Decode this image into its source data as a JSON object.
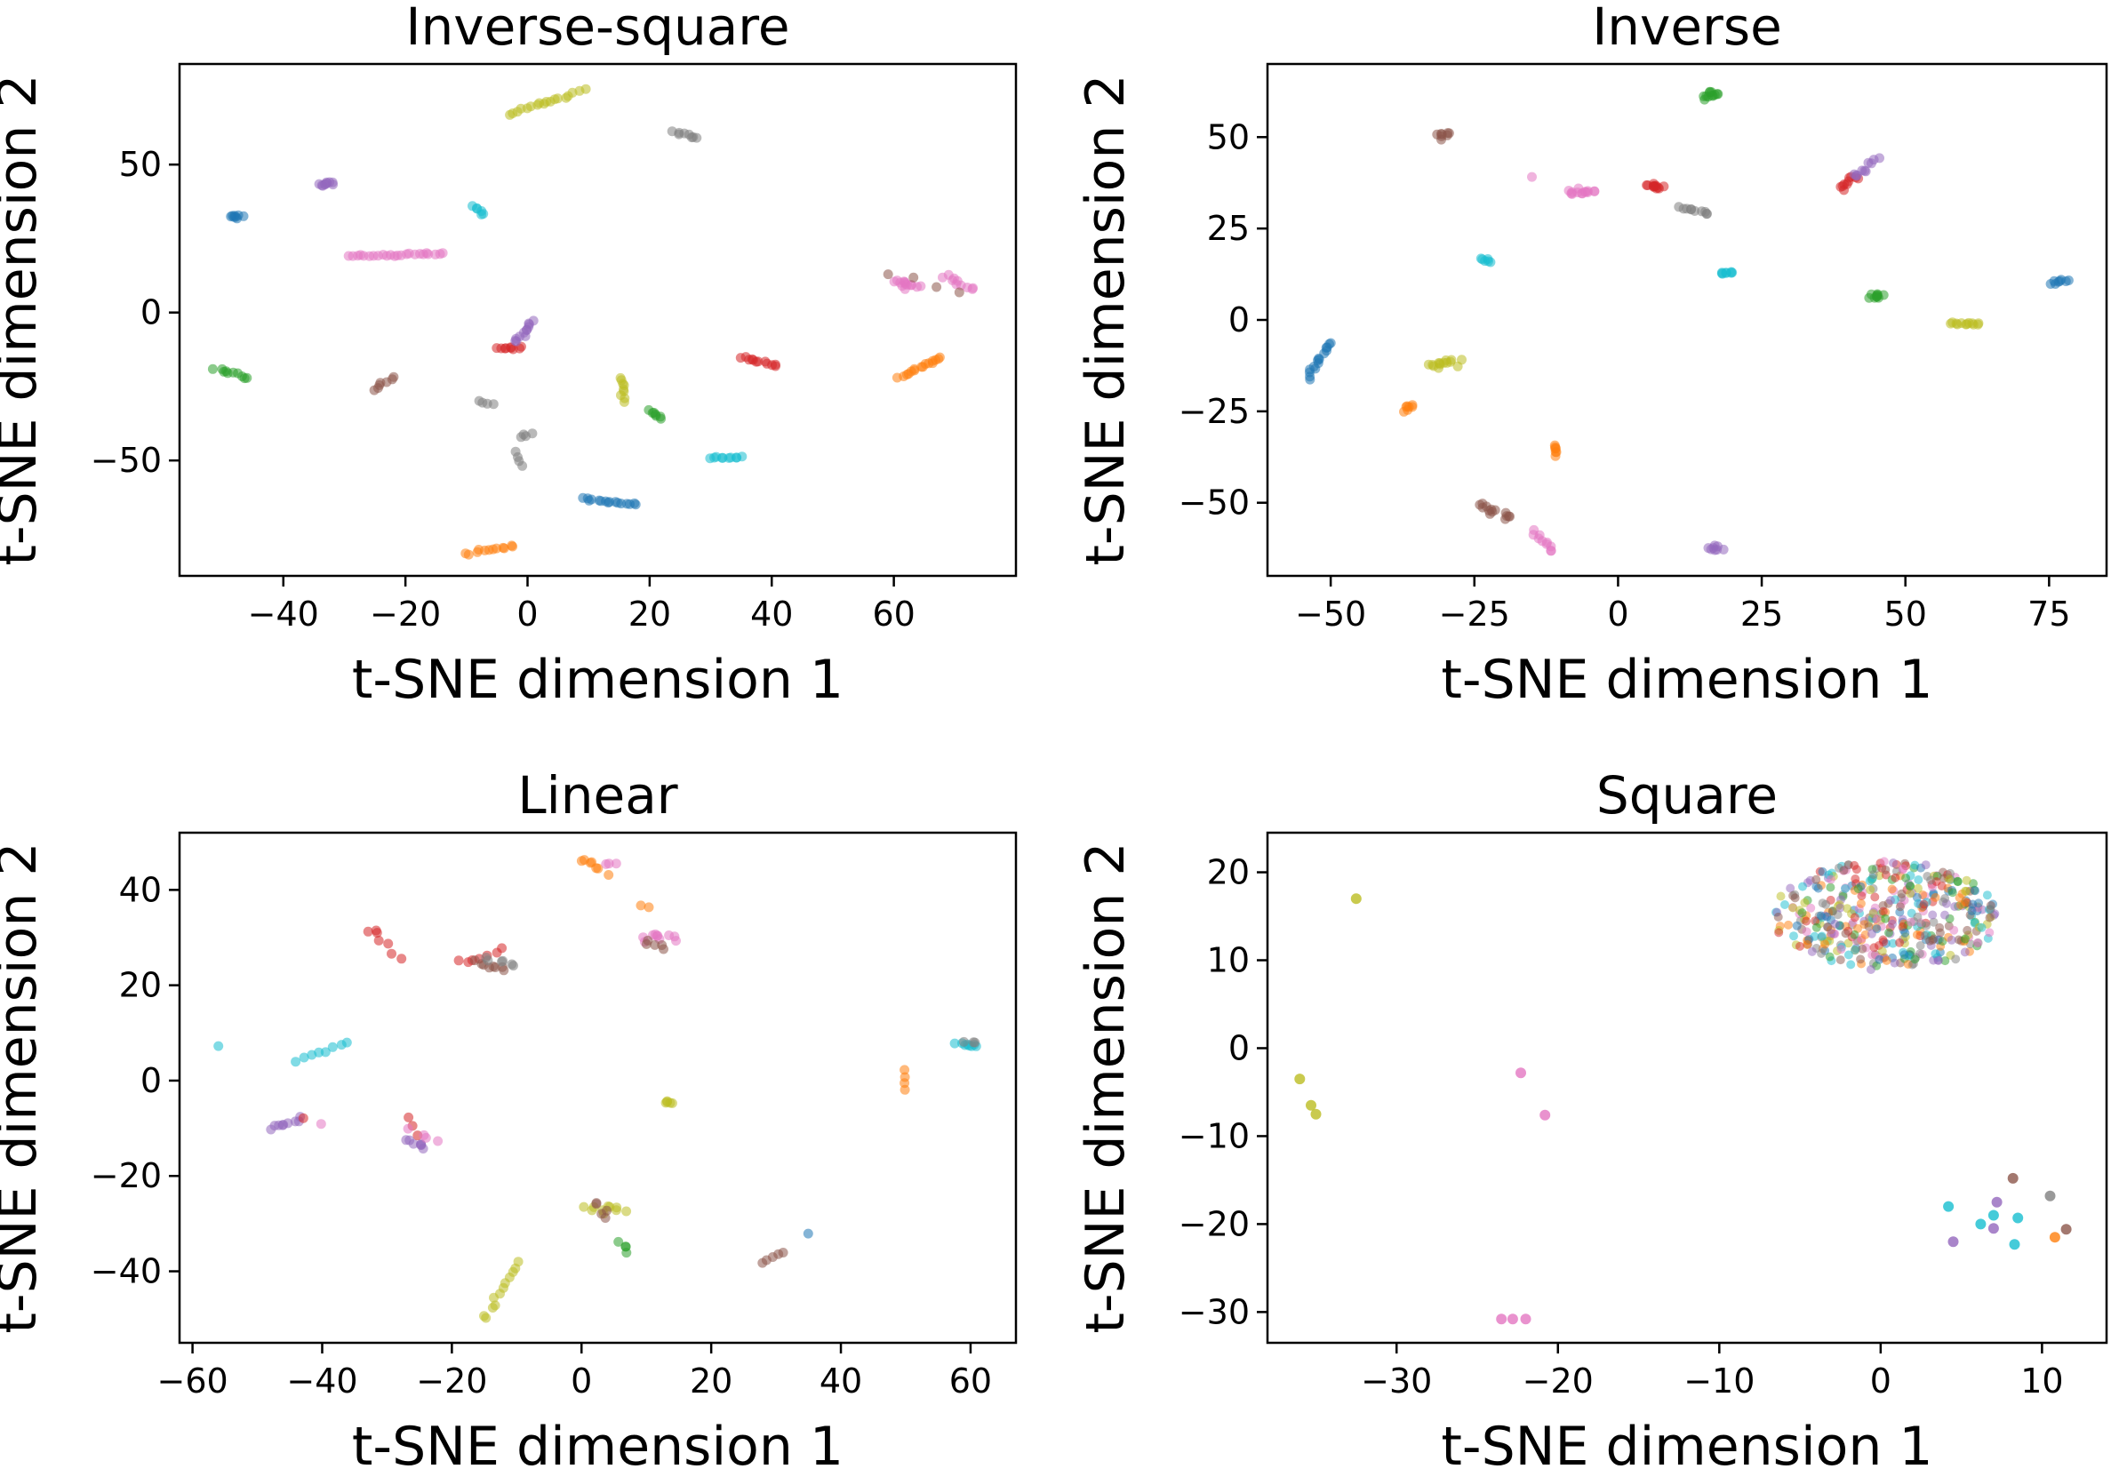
{
  "palette": {
    "blue": "#1f77b4",
    "orange": "#ff7f0e",
    "green": "#2ca02c",
    "red": "#d62728",
    "purple": "#9467bd",
    "brown": "#8c564b",
    "pink": "#e377c2",
    "gray": "#7f7f7f",
    "olive": "#bcbd22",
    "cyan": "#17becf"
  },
  "chart_data": [
    {
      "type": "scatter",
      "title": "Inverse-square",
      "xlabel": "t-SNE dimension 1",
      "ylabel": "t-SNE dimension 2",
      "xlim": [
        -57,
        80
      ],
      "ylim": [
        -89,
        84
      ],
      "xticks": [
        -40,
        -20,
        0,
        20,
        40,
        60
      ],
      "yticks": [
        -50,
        0,
        50
      ],
      "grid": false,
      "legend": "none",
      "clusters": [
        {
          "color": "blue",
          "x0": -49,
          "y0": 33,
          "x1": -47,
          "y1": 32,
          "n": 8,
          "spread": 0.6
        },
        {
          "color": "purple",
          "x0": -34,
          "y0": 43,
          "x1": -32,
          "y1": 44,
          "n": 10,
          "spread": 0.7
        },
        {
          "color": "cyan",
          "x0": -9,
          "y0": 36,
          "x1": -7,
          "y1": 33,
          "n": 6,
          "spread": 0.5
        },
        {
          "color": "olive",
          "x0": -3,
          "y0": 67,
          "x1": 9,
          "y1": 75,
          "n": 18,
          "spread": 0.6
        },
        {
          "color": "gray",
          "x0": 24,
          "y0": 61,
          "x1": 28,
          "y1": 59,
          "n": 8,
          "spread": 0.4
        },
        {
          "color": "pink",
          "x0": -29,
          "y0": 19,
          "x1": -14,
          "y1": 20,
          "n": 24,
          "spread": 0.4
        },
        {
          "color": "green",
          "x0": -51,
          "y0": -19,
          "x1": -46,
          "y1": -22,
          "n": 10,
          "spread": 0.5
        },
        {
          "color": "brown",
          "x0": -25,
          "y0": -26,
          "x1": -22,
          "y1": -22,
          "n": 7,
          "spread": 0.4
        },
        {
          "color": "gray",
          "x0": -8,
          "y0": -30,
          "x1": -6,
          "y1": -31,
          "n": 4,
          "spread": 0.4
        },
        {
          "color": "gray",
          "x0": -1,
          "y0": -42,
          "x1": 1,
          "y1": -41,
          "n": 4,
          "spread": 0.4
        },
        {
          "color": "gray",
          "x0": -2,
          "y0": -47,
          "x1": -1,
          "y1": -52,
          "n": 4,
          "spread": 0.3
        },
        {
          "color": "red",
          "x0": -5,
          "y0": -12,
          "x1": -1,
          "y1": -12,
          "n": 9,
          "spread": 0.5
        },
        {
          "color": "purple",
          "x0": -2,
          "y0": -10,
          "x1": 1,
          "y1": -3,
          "n": 12,
          "spread": 0.6
        },
        {
          "color": "olive",
          "x0": 15,
          "y0": -22,
          "x1": 16,
          "y1": -30,
          "n": 9,
          "spread": 0.5
        },
        {
          "color": "green",
          "x0": 20,
          "y0": -33,
          "x1": 22,
          "y1": -36,
          "n": 7,
          "spread": 0.5
        },
        {
          "color": "red",
          "x0": 35,
          "y0": -15,
          "x1": 41,
          "y1": -18,
          "n": 12,
          "spread": 0.4
        },
        {
          "color": "cyan",
          "x0": 30,
          "y0": -49,
          "x1": 35,
          "y1": -49,
          "n": 10,
          "spread": 0.4
        },
        {
          "color": "blue",
          "x0": 9,
          "y0": -63,
          "x1": 18,
          "y1": -65,
          "n": 16,
          "spread": 0.4
        },
        {
          "color": "orange",
          "x0": -10,
          "y0": -81,
          "x1": -2,
          "y1": -79,
          "n": 12,
          "spread": 0.4
        },
        {
          "color": "orange",
          "x0": 61,
          "y0": -22,
          "x1": 68,
          "y1": -15,
          "n": 16,
          "spread": 0.5
        },
        {
          "color": "pink",
          "x0": 60,
          "y0": 10,
          "x1": 64,
          "y1": 9,
          "n": 14,
          "spread": 1.0
        },
        {
          "color": "pink",
          "x0": 68,
          "y0": 12,
          "x1": 73,
          "y1": 8,
          "n": 10,
          "spread": 0.8
        },
        {
          "color": "brown",
          "x0": 59,
          "y0": 13,
          "x1": 71,
          "y1": 7,
          "n": 4,
          "spread": 0.6
        }
      ]
    },
    {
      "type": "scatter",
      "title": "Inverse",
      "xlabel": "t-SNE dimension 1",
      "ylabel": "t-SNE dimension 2",
      "xlim": [
        -61,
        85
      ],
      "ylim": [
        -70,
        70
      ],
      "xticks": [
        -50,
        -25,
        0,
        25,
        50,
        75
      ],
      "yticks": [
        -50,
        -25,
        0,
        25,
        50
      ],
      "grid": false,
      "legend": "none",
      "clusters": [
        {
          "color": "green",
          "x0": 15,
          "y0": 61,
          "x1": 17,
          "y1": 62,
          "n": 12,
          "spread": 0.8
        },
        {
          "color": "brown",
          "x0": -31,
          "y0": 50,
          "x1": -30,
          "y1": 51,
          "n": 8,
          "spread": 0.6
        },
        {
          "color": "pink",
          "x0": -9,
          "y0": 35,
          "x1": -4,
          "y1": 35,
          "n": 14,
          "spread": 0.7
        },
        {
          "color": "red",
          "x0": 5,
          "y0": 37,
          "x1": 8,
          "y1": 36,
          "n": 12,
          "spread": 0.7
        },
        {
          "color": "gray",
          "x0": 11,
          "y0": 31,
          "x1": 16,
          "y1": 29,
          "n": 10,
          "spread": 0.4
        },
        {
          "color": "red",
          "x0": 39,
          "y0": 36,
          "x1": 41,
          "y1": 39,
          "n": 10,
          "spread": 0.8
        },
        {
          "color": "purple",
          "x0": 41,
          "y0": 39,
          "x1": 45,
          "y1": 44,
          "n": 10,
          "spread": 0.7
        },
        {
          "color": "cyan",
          "x0": -24,
          "y0": 17,
          "x1": -22,
          "y1": 16,
          "n": 6,
          "spread": 0.5
        },
        {
          "color": "cyan",
          "x0": 18,
          "y0": 13,
          "x1": 20,
          "y1": 13,
          "n": 8,
          "spread": 0.6
        },
        {
          "color": "green",
          "x0": 44,
          "y0": 6,
          "x1": 46,
          "y1": 7,
          "n": 10,
          "spread": 0.7
        },
        {
          "color": "olive",
          "x0": 58,
          "y0": -1,
          "x1": 63,
          "y1": -1,
          "n": 12,
          "spread": 0.3
        },
        {
          "color": "blue",
          "x0": 75,
          "y0": 10,
          "x1": 78,
          "y1": 11,
          "n": 8,
          "spread": 0.4
        },
        {
          "color": "blue",
          "x0": -54,
          "y0": -16,
          "x1": -50,
          "y1": -6,
          "n": 16,
          "spread": 0.5
        },
        {
          "color": "olive",
          "x0": -33,
          "y0": -13,
          "x1": -28,
          "y1": -11,
          "n": 14,
          "spread": 0.9
        },
        {
          "color": "orange",
          "x0": -37,
          "y0": -25,
          "x1": -36,
          "y1": -23,
          "n": 7,
          "spread": 0.5
        },
        {
          "color": "orange",
          "x0": -11,
          "y0": -37,
          "x1": -11,
          "y1": -34,
          "n": 7,
          "spread": 0.5
        },
        {
          "color": "brown",
          "x0": -24,
          "y0": -51,
          "x1": -19,
          "y1": -54,
          "n": 14,
          "spread": 1.0
        },
        {
          "color": "pink",
          "x0": -15,
          "y0": -58,
          "x1": -11,
          "y1": -63,
          "n": 10,
          "spread": 0.5
        },
        {
          "color": "purple",
          "x0": 16,
          "y0": -62,
          "x1": 18,
          "y1": -63,
          "n": 8,
          "spread": 0.7
        },
        {
          "color": "pink",
          "x0": -15,
          "y0": 39,
          "x1": -15,
          "y1": 39,
          "n": 1,
          "spread": 0.1
        }
      ]
    },
    {
      "type": "scatter",
      "title": "Linear",
      "xlabel": "t-SNE dimension 1",
      "ylabel": "t-SNE dimension 2",
      "xlim": [
        -62,
        67
      ],
      "ylim": [
        -55,
        52
      ],
      "xticks": [
        -60,
        -40,
        -20,
        0,
        20,
        40,
        60
      ],
      "yticks": [
        -40,
        -20,
        0,
        20,
        40
      ],
      "grid": false,
      "legend": "none",
      "clusters": [
        {
          "color": "orange",
          "x0": 0,
          "y0": 46,
          "x1": 3,
          "y1": 45,
          "n": 6,
          "spread": 0.6
        },
        {
          "color": "pink",
          "x0": 4,
          "y0": 46,
          "x1": 5,
          "y1": 45,
          "n": 3,
          "spread": 0.4
        },
        {
          "color": "orange",
          "x0": 4,
          "y0": 43,
          "x1": 4,
          "y1": 43,
          "n": 1,
          "spread": 0.2
        },
        {
          "color": "orange",
          "x0": 9,
          "y0": 37,
          "x1": 10,
          "y1": 36,
          "n": 2,
          "spread": 0.3
        },
        {
          "color": "pink",
          "x0": 9,
          "y0": 30,
          "x1": 15,
          "y1": 30,
          "n": 10,
          "spread": 0.7
        },
        {
          "color": "brown",
          "x0": 10,
          "y0": 29,
          "x1": 13,
          "y1": 28,
          "n": 5,
          "spread": 0.7
        },
        {
          "color": "red",
          "x0": -33,
          "y0": 32,
          "x1": -28,
          "y1": 26,
          "n": 7,
          "spread": 0.8
        },
        {
          "color": "red",
          "x0": -19,
          "y0": 25,
          "x1": -12,
          "y1": 27,
          "n": 7,
          "spread": 0.7
        },
        {
          "color": "brown",
          "x0": -16,
          "y0": 25,
          "x1": -12,
          "y1": 23,
          "n": 8,
          "spread": 0.8
        },
        {
          "color": "gray",
          "x0": -15,
          "y0": 26,
          "x1": -10,
          "y1": 24,
          "n": 6,
          "spread": 0.8
        },
        {
          "color": "cyan",
          "x0": -56,
          "y0": 7,
          "x1": -56,
          "y1": 7,
          "n": 1,
          "spread": 0.2
        },
        {
          "color": "cyan",
          "x0": -44,
          "y0": 4,
          "x1": -36,
          "y1": 8,
          "n": 8,
          "spread": 0.3
        },
        {
          "color": "orange",
          "x0": 50,
          "y0": 2,
          "x1": 50,
          "y1": -2,
          "n": 4,
          "spread": 0.3
        },
        {
          "color": "cyan",
          "x0": 58,
          "y0": 8,
          "x1": 61,
          "y1": 7,
          "n": 8,
          "spread": 0.5
        },
        {
          "color": "gray",
          "x0": 59,
          "y0": 8,
          "x1": 61,
          "y1": 8,
          "n": 3,
          "spread": 0.4
        },
        {
          "color": "olive",
          "x0": 13,
          "y0": -4,
          "x1": 14,
          "y1": -5,
          "n": 5,
          "spread": 0.4
        },
        {
          "color": "purple",
          "x0": -48,
          "y0": -10,
          "x1": -43,
          "y1": -8,
          "n": 9,
          "spread": 0.4
        },
        {
          "color": "red",
          "x0": -43,
          "y0": -8,
          "x1": -43,
          "y1": -8,
          "n": 1,
          "spread": 0.2
        },
        {
          "color": "pink",
          "x0": -40,
          "y0": -9,
          "x1": -40,
          "y1": -9,
          "n": 1,
          "spread": 0.2
        },
        {
          "color": "purple",
          "x0": -27,
          "y0": -12,
          "x1": -24,
          "y1": -14,
          "n": 7,
          "spread": 0.7
        },
        {
          "color": "red",
          "x0": -27,
          "y0": -8,
          "x1": -25,
          "y1": -11,
          "n": 3,
          "spread": 0.5
        },
        {
          "color": "pink",
          "x0": -26,
          "y0": -10,
          "x1": -22,
          "y1": -13,
          "n": 4,
          "spread": 0.7
        },
        {
          "color": "olive",
          "x0": 1,
          "y0": -27,
          "x1": 6,
          "y1": -27,
          "n": 10,
          "spread": 0.8
        },
        {
          "color": "brown",
          "x0": 2,
          "y0": -26,
          "x1": 4,
          "y1": -29,
          "n": 5,
          "spread": 0.7
        },
        {
          "color": "green",
          "x0": 6,
          "y0": -34,
          "x1": 7,
          "y1": -36,
          "n": 4,
          "spread": 0.4
        },
        {
          "color": "brown",
          "x0": 28,
          "y0": -38,
          "x1": 31,
          "y1": -36,
          "n": 5,
          "spread": 0.3
        },
        {
          "color": "blue",
          "x0": 35,
          "y0": -32,
          "x1": 35,
          "y1": -32,
          "n": 1,
          "spread": 0.2
        },
        {
          "color": "olive",
          "x0": -15,
          "y0": -50,
          "x1": -10,
          "y1": -38,
          "n": 12,
          "spread": 0.4
        }
      ]
    },
    {
      "type": "scatter",
      "title": "Square",
      "xlabel": "t-SNE dimension 1",
      "ylabel": "t-SNE dimension 2",
      "xlim": [
        -38,
        14
      ],
      "ylim": [
        -33.5,
        24.5
      ],
      "xticks": [
        -30,
        -20,
        -10,
        0,
        10
      ],
      "yticks": [
        -30,
        -20,
        -10,
        0,
        10,
        20
      ],
      "grid": false,
      "legend": "none",
      "blob": {
        "cx": 0.3,
        "cy": 15,
        "rx": 7,
        "ry": 6.3,
        "n": 420,
        "colors": [
          "blue",
          "orange",
          "green",
          "red",
          "purple",
          "brown",
          "pink",
          "gray",
          "olive",
          "cyan"
        ]
      },
      "points": [
        {
          "color": "olive",
          "x": -32.5,
          "y": 17
        },
        {
          "color": "olive",
          "x": -36,
          "y": -3.5
        },
        {
          "color": "olive",
          "x": -35.3,
          "y": -6.5
        },
        {
          "color": "olive",
          "x": -35,
          "y": -7.5
        },
        {
          "color": "pink",
          "x": -22.3,
          "y": -2.8
        },
        {
          "color": "pink",
          "x": -20.8,
          "y": -7.6
        },
        {
          "color": "pink",
          "x": -23.5,
          "y": -30.8
        },
        {
          "color": "pink",
          "x": -22.8,
          "y": -30.8
        },
        {
          "color": "pink",
          "x": -22,
          "y": -30.8
        },
        {
          "color": "cyan",
          "x": 4.2,
          "y": -18
        },
        {
          "color": "cyan",
          "x": 6.2,
          "y": -20
        },
        {
          "color": "cyan",
          "x": 7,
          "y": -19
        },
        {
          "color": "cyan",
          "x": 8.5,
          "y": -19.3
        },
        {
          "color": "cyan",
          "x": 8.3,
          "y": -22.3
        },
        {
          "color": "purple",
          "x": 4.5,
          "y": -22
        },
        {
          "color": "purple",
          "x": 7.2,
          "y": -17.5
        },
        {
          "color": "purple",
          "x": 7,
          "y": -20.5
        },
        {
          "color": "brown",
          "x": 8.2,
          "y": -14.8
        },
        {
          "color": "gray",
          "x": 10.5,
          "y": -16.8
        },
        {
          "color": "orange",
          "x": 10.8,
          "y": -21.5
        },
        {
          "color": "brown",
          "x": 11.5,
          "y": -20.6
        }
      ]
    }
  ]
}
